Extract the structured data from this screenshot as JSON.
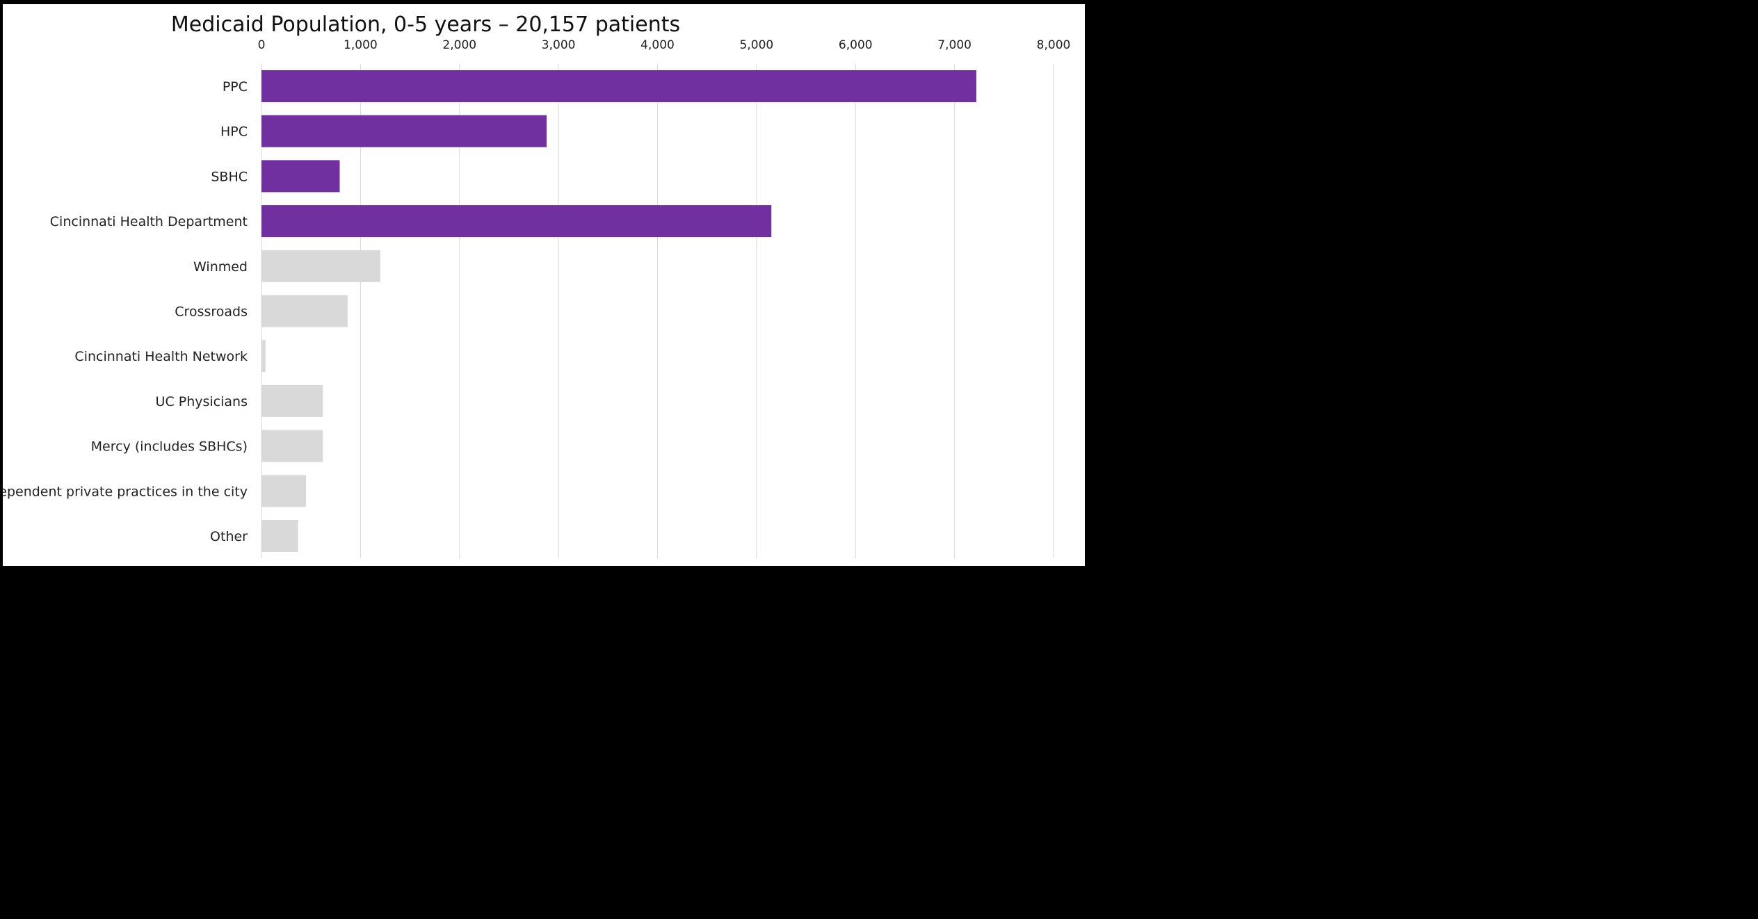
{
  "chart_data": {
    "type": "bar",
    "orientation": "horizontal",
    "title": "Medicaid Population, 0-5 years – 20,157 patients",
    "xlabel": "",
    "ylabel": "",
    "xlim": [
      0,
      8000
    ],
    "xticks": [
      0,
      1000,
      2000,
      3000,
      4000,
      5000,
      6000,
      7000,
      8000
    ],
    "xtick_labels": [
      "0",
      "1,000",
      "2,000",
      "3,000",
      "4,000",
      "5,000",
      "6,000",
      "7,000",
      "8,000"
    ],
    "axis_position": "top",
    "grid": true,
    "categories": [
      "PPC",
      "HPC",
      "SBHC",
      "Cincinnati Health Department",
      "Winmed",
      "Crossroads",
      "Cincinnati Health Network",
      "UC Physicians",
      "Mercy (includes SBHCs)",
      "Independent private practices in the city",
      "Other"
    ],
    "values": [
      7220,
      2880,
      790,
      5150,
      1200,
      870,
      40,
      620,
      620,
      450,
      370
    ],
    "highlighted": [
      true,
      true,
      true,
      true,
      false,
      false,
      false,
      false,
      false,
      false,
      false
    ],
    "colors": {
      "highlight": "#7030a0",
      "default": "#d9d9d9",
      "gridline": "#d9d9d9"
    }
  }
}
